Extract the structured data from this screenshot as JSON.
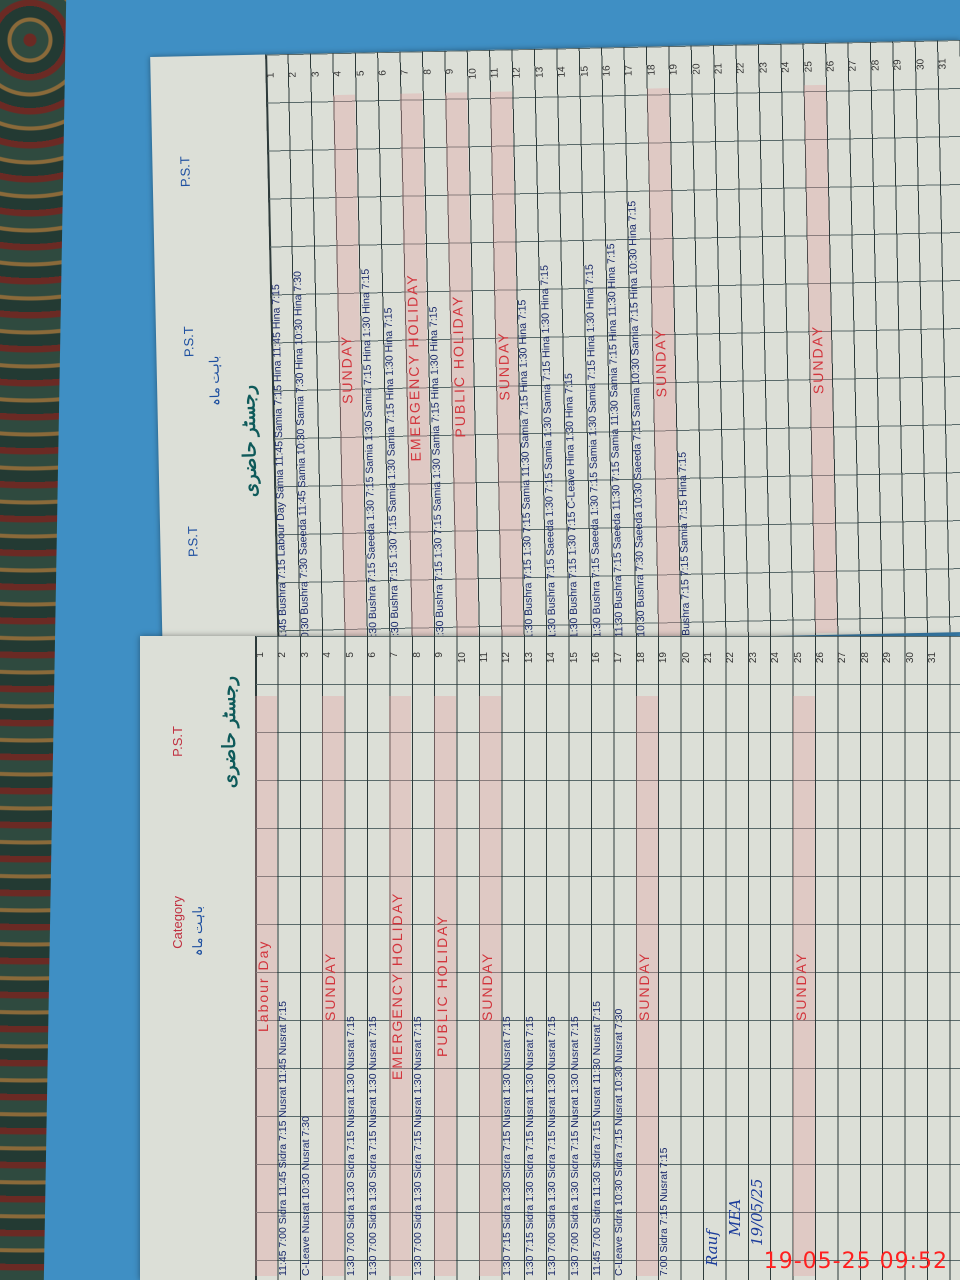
{
  "timestamp": "19-05-25  09:52",
  "left_page": {
    "title": "رجسٹر حاضری",
    "header": {
      "heading": "باہت ماہ",
      "category_label": "Category",
      "post_label": "P.S.T"
    },
    "days": [
      "1",
      "2",
      "3",
      "4",
      "5",
      "6",
      "7",
      "8",
      "9",
      "10",
      "11",
      "12",
      "13",
      "14",
      "15",
      "16",
      "17",
      "18",
      "19",
      "20",
      "21",
      "22",
      "23",
      "24",
      "25",
      "26",
      "27",
      "28",
      "29",
      "30",
      "31"
    ],
    "entries": [
      {
        "day": 1,
        "text": "Labour Day",
        "holiday": true
      },
      {
        "day": 2,
        "text": "11:45  7:00  Sidra 11:45  Sidra 7:15  Nusrat 11:45  Nusrat 7:15"
      },
      {
        "day": 3,
        "text": "C-Leave      Nusrat 10:30  Nusrat 7:30"
      },
      {
        "day": 4,
        "text": "SUNDAY",
        "holiday": true
      },
      {
        "day": 5,
        "text": "1:30  7:00  Sidra 1:30  Sidra 7:15  Nusrat 1:30  Nusrat 7:15"
      },
      {
        "day": 6,
        "text": "1:30  7:00  Sidra 1:30  Sidra 7:15  Nusrat 1:30  Nusrat 7:15"
      },
      {
        "day": 7,
        "text": "EMERGENCY HOLIDAY",
        "holiday": true
      },
      {
        "day": 8,
        "text": "1:30  7:00  Sidra 1:30  Sidra 7:15  Nusrat 1:30  Nusrat 7:15"
      },
      {
        "day": 9,
        "text": "PUBLIC HOLIDAY",
        "holiday": true
      },
      {
        "day": 11,
        "text": "SUNDAY",
        "holiday": true
      },
      {
        "day": 12,
        "text": "1:30  7:15  Sidra 1:30  Sidra 7:15  Nusrat 1:30  Nusrat 7:15"
      },
      {
        "day": 13,
        "text": "1:30  7:15  Sidra 1:30  Sidra 7:15  Nusrat 1:30  Nusrat 7:15"
      },
      {
        "day": 14,
        "text": "1:30  7:00  Sidra 1:30  Sidra 7:15  Nusrat 1:30  Nusrat 7:15"
      },
      {
        "day": 15,
        "text": "1:30  7:00  Sidra 1:30  Sidra 7:15  Nusrat 1:30  Nusrat 7:15"
      },
      {
        "day": 16,
        "text": "11:45  7:00  Sidra 11:30  Sidra 7:15  Nusrat 11:30  Nusrat 7:15"
      },
      {
        "day": 17,
        "text": "C-Leave  Sidra 10:30  Sidra 7:15  Nusrat 10:30  Nusrat 7:30"
      },
      {
        "day": 18,
        "text": "SUNDAY",
        "holiday": true
      },
      {
        "day": 19,
        "text": "7:00       Sidra 7:15       Nusrat 7:15"
      },
      {
        "day": 25,
        "text": "SUNDAY",
        "holiday": true
      }
    ],
    "signatures": [
      "Rauf",
      "MEA",
      "19/05/25"
    ]
  },
  "right_page": {
    "title": "رجسٹر حاضری",
    "header": {
      "heading": "باہت ماہ",
      "post_label_1": "P.S.T",
      "post_label_2": "P.S.T",
      "post_label_3": "P.S.T"
    },
    "days": [
      "1",
      "2",
      "3",
      "4",
      "5",
      "6",
      "7",
      "8",
      "9",
      "10",
      "11",
      "12",
      "13",
      "14",
      "15",
      "16",
      "17",
      "18",
      "19",
      "20",
      "21",
      "22",
      "23",
      "24",
      "25",
      "26",
      "27",
      "28",
      "29",
      "30",
      "31"
    ],
    "entries": [
      {
        "day": 1,
        "text": "11:45  Bushra 7:15  Labour Day  Samia 11:45  Samia 7:15  Hina 11:45  Hina 7:15",
        "holiday": false
      },
      {
        "day": 2,
        "text": "10:30  Bushra 7:30  Saeeda 11:45  Samia 10:30  Samia 7:30  Hina 10:30  Hina 7:30"
      },
      {
        "day": 4,
        "text": "SUNDAY",
        "holiday": true
      },
      {
        "day": 5,
        "text": "1:30  Bushra 7:15  Saeeda 1:30  7:15  Samia 1:30  Samia 7:15  Hina 1:30  Hina 7:15"
      },
      {
        "day": 6,
        "text": "1:30  Bushra 7:15  1:30  7:15  Samia 1:30  Samia 7:15  Hina 1:30  Hina 7:15"
      },
      {
        "day": 7,
        "text": "EMERGENCY HOLIDAY",
        "holiday": true
      },
      {
        "day": 8,
        "text": "1:30  Bushra 7:15  1:30  7:15  Samia 1:30  Samia 7:15  Hina 1:30  Hina 7:15"
      },
      {
        "day": 9,
        "text": "PUBLIC HOLIDAY",
        "holiday": true
      },
      {
        "day": 11,
        "text": "SUNDAY",
        "holiday": true
      },
      {
        "day": 12,
        "text": "1:30  Bushra 7:15  1:30  7:15  Samia 11:30  Samia 7:15  Hina 1:30  Hina 7:15"
      },
      {
        "day": 13,
        "text": "1:30  Bushra 7:15  Saeeda 1:30  7:15  Samia 1:30  Samia 7:15  Hina 1:30  Hina 7:15"
      },
      {
        "day": 14,
        "text": "1:30  Bushra 7:15  1:30  7:15  C-Leave  Hina 1:30  Hina 7:15"
      },
      {
        "day": 15,
        "text": "1:30  Bushra 7:15  Saeeda 1:30  7:15  Samia 1:30  Samia 7:15  Hina 1:30  Hina 7:15"
      },
      {
        "day": 16,
        "text": "11:30  Bushra 7:15  Saeeda 11:30  7:15  Samia 11:30  Samia 7:15  Hina 11:30  Hina 7:15"
      },
      {
        "day": 17,
        "text": "10:30  Bushra 7:30  Saeeda 10:30  Saeeda 7:15  Samia 10:30  Samia 7:15  Hina 10:30  Hina 7:15"
      },
      {
        "day": 18,
        "text": "SUNDAY",
        "holiday": true
      },
      {
        "day": 19,
        "text": "Bushra 7:15       7:15       Samia 7:15       Hina 7:15"
      },
      {
        "day": 25,
        "text": "SUNDAY",
        "holiday": true
      }
    ]
  },
  "colors": {
    "ink_blue": "#1b2a6b",
    "ink_red": "#d2343c",
    "paper": "#dcdfd7",
    "folder": "#3f8fc4",
    "timestamp": "#ff2020"
  }
}
